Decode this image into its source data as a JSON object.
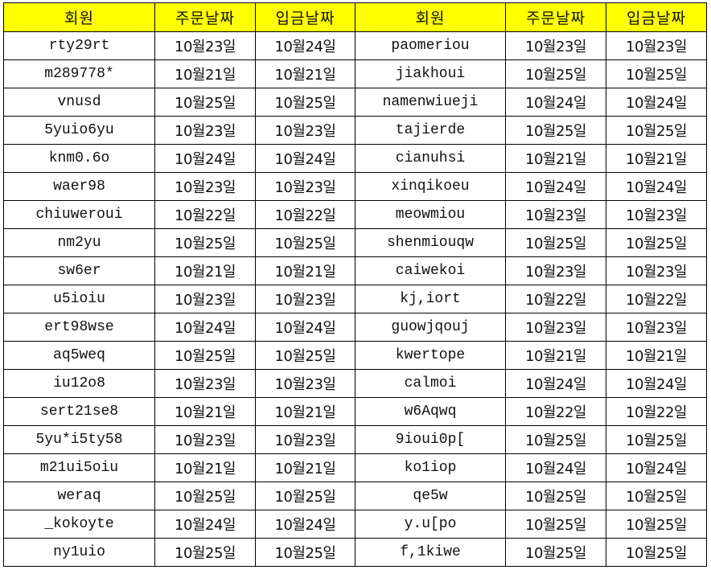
{
  "colors": {
    "header_bg": "#ffff00",
    "grid": "#000000"
  },
  "headers": [
    "회원",
    "주문날짜",
    "입금날짜",
    "회원",
    "주문날짜",
    "입금날짜"
  ],
  "rows": [
    [
      "rty29rt",
      "10월23일",
      "10월24일",
      "paomeriou",
      "10월23일",
      "10월23일"
    ],
    [
      "m289778*",
      "10월21일",
      "10월21일",
      "jiakhoui",
      "10월25일",
      "10월25일"
    ],
    [
      "vnusd",
      "10월25일",
      "10월25일",
      "namenwiueji",
      "10월24일",
      "10월24일"
    ],
    [
      "5yuio6yu",
      "10월23일",
      "10월23일",
      "tajierde",
      "10월25일",
      "10월25일"
    ],
    [
      "knm0.6o",
      "10월24일",
      "10월24일",
      "cianuhsi",
      "10월21일",
      "10월21일"
    ],
    [
      "waer98",
      "10월23일",
      "10월23일",
      "xinqikoeu",
      "10월24일",
      "10월24일"
    ],
    [
      "chiuweroui",
      "10월22일",
      "10월22일",
      "meowmiou",
      "10월23일",
      "10월23일"
    ],
    [
      "nm2yu",
      "10월25일",
      "10월25일",
      "shenmiouqw",
      "10월25일",
      "10월25일"
    ],
    [
      "sw6er",
      "10월21일",
      "10월21일",
      "caiwekoi",
      "10월23일",
      "10월23일"
    ],
    [
      "u5ioiu",
      "10월23일",
      "10월23일",
      "kj,iort",
      "10월22일",
      "10월22일"
    ],
    [
      "ert98wse",
      "10월24일",
      "10월24일",
      "guowjqouj",
      "10월23일",
      "10월23일"
    ],
    [
      "aq5weq",
      "10월25일",
      "10월25일",
      "kwertope",
      "10월21일",
      "10월21일"
    ],
    [
      "iu12o8",
      "10월23일",
      "10월23일",
      "calmoi",
      "10월24일",
      "10월24일"
    ],
    [
      "sert21se8",
      "10월21일",
      "10월21일",
      "w6Aqwq",
      "10월22일",
      "10월22일"
    ],
    [
      "5yu*i5ty58",
      "10월23일",
      "10월23일",
      "9ioui0p[",
      "10월25일",
      "10월25일"
    ],
    [
      "m21ui5oiu",
      "10월21일",
      "10월21일",
      "ko1iop",
      "10월24일",
      "10월24일"
    ],
    [
      "weraq",
      "10월25일",
      "10월25일",
      "qe5w",
      "10월25일",
      "10월25일"
    ],
    [
      "_kokoyte",
      "10월24일",
      "10월24일",
      "y.u[po",
      "10월25일",
      "10월25일"
    ],
    [
      "ny1uio",
      "10월25일",
      "10월25일",
      "f,1kiwe",
      "10월25일",
      "10월25일"
    ]
  ]
}
